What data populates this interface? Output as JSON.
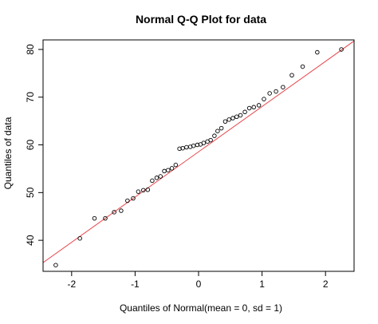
{
  "chart_data": {
    "type": "scatter",
    "title": "Normal Q-Q Plot for data",
    "xlabel": "Quantiles of Normal(mean = 0, sd = 1)",
    "ylabel": "Quantiles of data",
    "xlim": [
      -2.45,
      2.45
    ],
    "ylim": [
      33.5,
      82
    ],
    "xticks": [
      -2,
      -1,
      0,
      1,
      2
    ],
    "xtick_labels": [
      "-2",
      "-1",
      "0",
      "1",
      "2"
    ],
    "yticks": [
      40,
      50,
      60,
      70,
      80
    ],
    "ytick_labels": [
      "40",
      "50",
      "60",
      "70",
      "80"
    ],
    "grid": false,
    "legend": false,
    "reference_line": {
      "slope": 9.48,
      "intercept": 58.55,
      "color": "#e8474c"
    },
    "point_color": "#000000",
    "points": {
      "x": [
        -2.25,
        -1.87,
        -1.64,
        -1.47,
        -1.33,
        -1.22,
        -1.12,
        -1.03,
        -0.95,
        -0.87,
        -0.8,
        -0.73,
        -0.66,
        -0.6,
        -0.54,
        -0.48,
        -0.42,
        -0.36,
        -0.3,
        -0.25,
        -0.19,
        -0.13,
        -0.08,
        -0.02,
        0.03,
        0.08,
        0.14,
        0.19,
        0.25,
        0.3,
        0.36,
        0.42,
        0.48,
        0.54,
        0.6,
        0.66,
        0.73,
        0.8,
        0.87,
        0.95,
        1.03,
        1.12,
        1.22,
        1.33,
        1.47,
        1.64,
        1.87,
        2.25
      ],
      "y": [
        34.8,
        40.4,
        44.6,
        44.6,
        45.9,
        46.2,
        48.3,
        48.8,
        50.2,
        50.5,
        50.6,
        52.5,
        53.1,
        53.4,
        54.5,
        54.7,
        55.1,
        55.8,
        59.2,
        59.3,
        59.5,
        59.6,
        59.8,
        60.0,
        60.1,
        60.4,
        60.7,
        61.0,
        61.9,
        62.9,
        63.5,
        64.9,
        65.3,
        65.6,
        65.9,
        66.2,
        66.9,
        67.7,
        67.9,
        68.3,
        69.6,
        70.8,
        71.2,
        72.1,
        74.6,
        76.4,
        79.4,
        80.0
      ]
    }
  }
}
